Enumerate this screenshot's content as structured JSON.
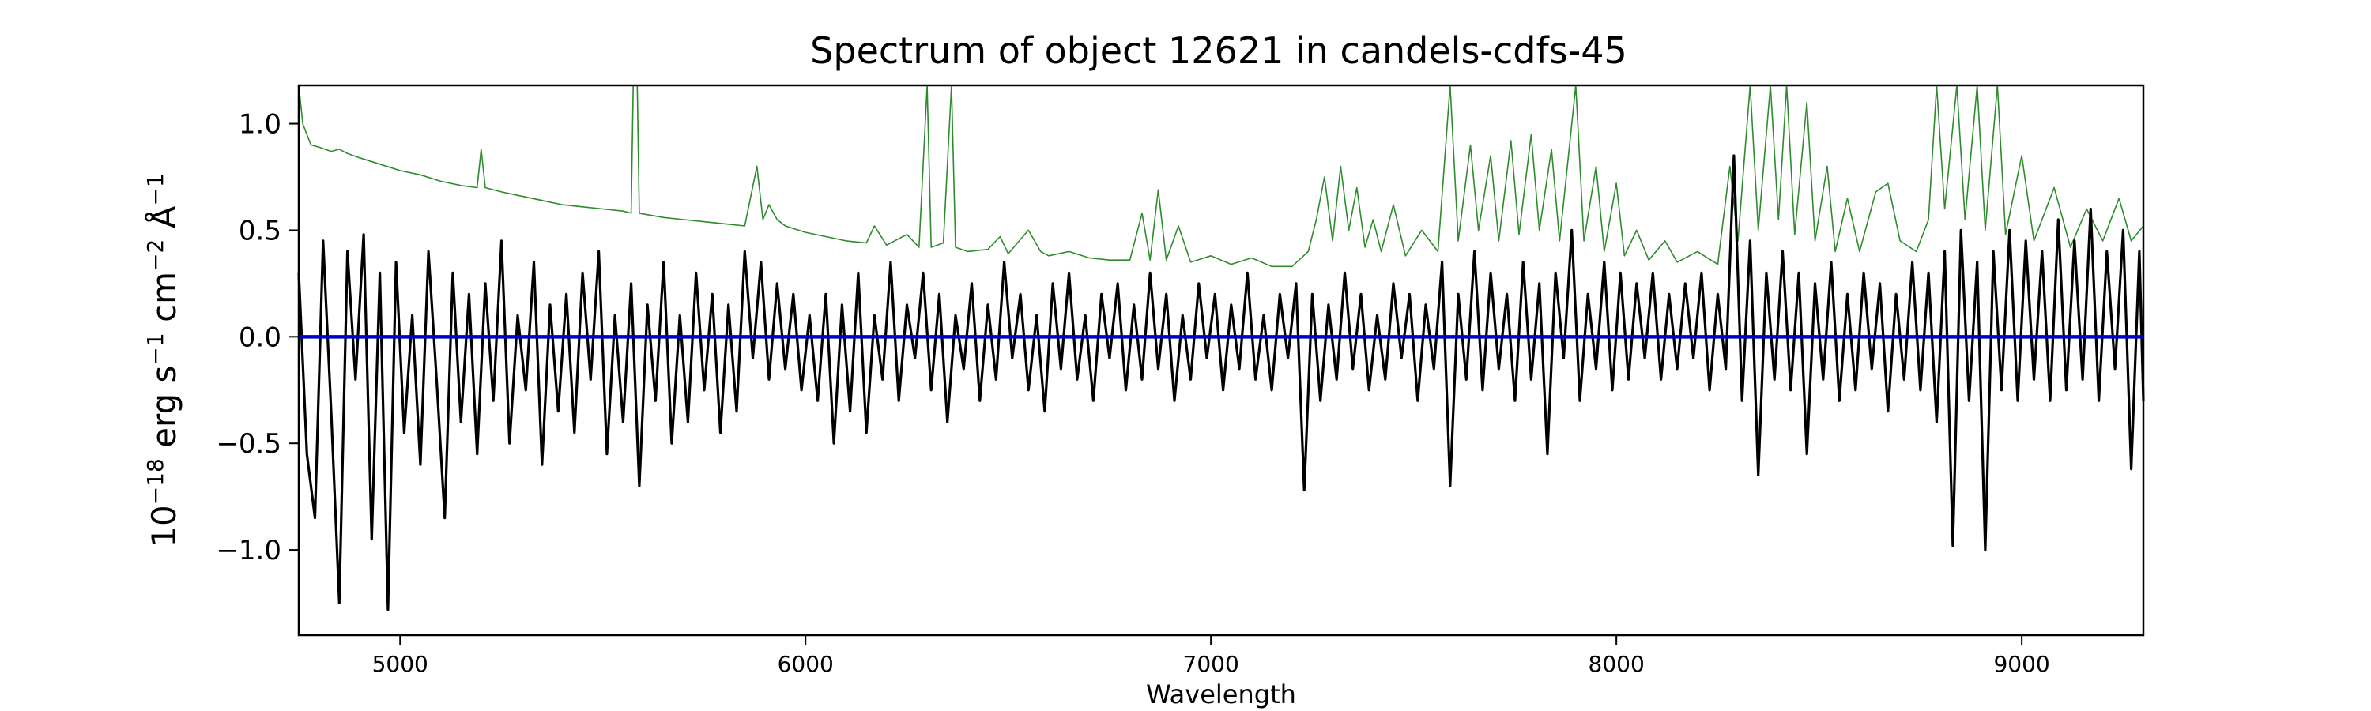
{
  "chart_data": {
    "type": "line",
    "title": "Spectrum of object 12621 in candels-cdfs-45",
    "xlabel": "Wavelength",
    "ylabel": {
      "base": "10",
      "exp1": "−18",
      "mid1": " erg s",
      "exp2": "−1",
      "mid2": " cm",
      "exp3": "−2",
      "mid3": " Å",
      "exp4": "−1"
    },
    "xlim": [
      4750,
      9300
    ],
    "ylim": [
      -1.4,
      1.18
    ],
    "x_ticks": [
      5000,
      6000,
      7000,
      8000,
      9000
    ],
    "x_tick_labels": [
      "5000",
      "6000",
      "7000",
      "8000",
      "9000"
    ],
    "y_ticks": [
      -1.0,
      -0.5,
      0.0,
      0.5,
      1.0
    ],
    "y_tick_labels": [
      "−1.0",
      "−0.5",
      "0.0",
      "0.5",
      "1.0"
    ],
    "grid": false,
    "colors": {
      "flux": "#000000",
      "error": "#2e8b2e",
      "zero": "#0000cc"
    },
    "zero_line": 0.0,
    "flux_points": [
      [
        4750,
        0.3
      ],
      [
        4770,
        -0.55
      ],
      [
        4790,
        -0.85
      ],
      [
        4810,
        0.45
      ],
      [
        4830,
        -0.35
      ],
      [
        4850,
        -1.25
      ],
      [
        4870,
        0.4
      ],
      [
        4890,
        -0.2
      ],
      [
        4910,
        0.48
      ],
      [
        4930,
        -0.95
      ],
      [
        4950,
        0.3
      ],
      [
        4970,
        -1.28
      ],
      [
        4990,
        0.35
      ],
      [
        5010,
        -0.45
      ],
      [
        5030,
        0.1
      ],
      [
        5050,
        -0.6
      ],
      [
        5070,
        0.4
      ],
      [
        5090,
        -0.2
      ],
      [
        5110,
        -0.85
      ],
      [
        5130,
        0.3
      ],
      [
        5150,
        -0.4
      ],
      [
        5170,
        0.2
      ],
      [
        5190,
        -0.55
      ],
      [
        5210,
        0.25
      ],
      [
        5230,
        -0.3
      ],
      [
        5250,
        0.45
      ],
      [
        5270,
        -0.5
      ],
      [
        5290,
        0.1
      ],
      [
        5310,
        -0.25
      ],
      [
        5330,
        0.35
      ],
      [
        5350,
        -0.6
      ],
      [
        5370,
        0.15
      ],
      [
        5390,
        -0.35
      ],
      [
        5410,
        0.2
      ],
      [
        5430,
        -0.45
      ],
      [
        5450,
        0.3
      ],
      [
        5470,
        -0.2
      ],
      [
        5490,
        0.4
      ],
      [
        5510,
        -0.55
      ],
      [
        5530,
        0.1
      ],
      [
        5550,
        -0.4
      ],
      [
        5570,
        0.25
      ],
      [
        5590,
        -0.7
      ],
      [
        5610,
        0.15
      ],
      [
        5630,
        -0.3
      ],
      [
        5650,
        0.35
      ],
      [
        5670,
        -0.5
      ],
      [
        5690,
        0.1
      ],
      [
        5710,
        -0.4
      ],
      [
        5730,
        0.3
      ],
      [
        5750,
        -0.25
      ],
      [
        5770,
        0.2
      ],
      [
        5790,
        -0.45
      ],
      [
        5810,
        0.15
      ],
      [
        5830,
        -0.35
      ],
      [
        5850,
        0.4
      ],
      [
        5870,
        -0.1
      ],
      [
        5890,
        0.35
      ],
      [
        5910,
        -0.2
      ],
      [
        5930,
        0.25
      ],
      [
        5950,
        -0.15
      ],
      [
        5970,
        0.2
      ],
      [
        5990,
        -0.25
      ],
      [
        6010,
        0.1
      ],
      [
        6030,
        -0.3
      ],
      [
        6050,
        0.2
      ],
      [
        6070,
        -0.5
      ],
      [
        6090,
        0.15
      ],
      [
        6110,
        -0.35
      ],
      [
        6130,
        0.3
      ],
      [
        6150,
        -0.45
      ],
      [
        6170,
        0.1
      ],
      [
        6190,
        -0.2
      ],
      [
        6210,
        0.35
      ],
      [
        6230,
        -0.3
      ],
      [
        6250,
        0.15
      ],
      [
        6270,
        -0.1
      ],
      [
        6290,
        0.3
      ],
      [
        6310,
        -0.25
      ],
      [
        6330,
        0.2
      ],
      [
        6350,
        -0.4
      ],
      [
        6370,
        0.1
      ],
      [
        6390,
        -0.15
      ],
      [
        6410,
        0.25
      ],
      [
        6430,
        -0.3
      ],
      [
        6450,
        0.15
      ],
      [
        6470,
        -0.2
      ],
      [
        6490,
        0.35
      ],
      [
        6510,
        -0.1
      ],
      [
        6530,
        0.2
      ],
      [
        6550,
        -0.25
      ],
      [
        6570,
        0.1
      ],
      [
        6590,
        -0.35
      ],
      [
        6610,
        0.25
      ],
      [
        6630,
        -0.15
      ],
      [
        6650,
        0.3
      ],
      [
        6670,
        -0.2
      ],
      [
        6690,
        0.1
      ],
      [
        6710,
        -0.3
      ],
      [
        6730,
        0.2
      ],
      [
        6750,
        -0.1
      ],
      [
        6770,
        0.25
      ],
      [
        6790,
        -0.25
      ],
      [
        6810,
        0.15
      ],
      [
        6830,
        -0.2
      ],
      [
        6850,
        0.3
      ],
      [
        6870,
        -0.15
      ],
      [
        6890,
        0.2
      ],
      [
        6910,
        -0.3
      ],
      [
        6930,
        0.1
      ],
      [
        6950,
        -0.2
      ],
      [
        6970,
        0.25
      ],
      [
        6990,
        -0.1
      ],
      [
        7010,
        0.2
      ],
      [
        7030,
        -0.25
      ],
      [
        7050,
        0.15
      ],
      [
        7070,
        -0.15
      ],
      [
        7090,
        0.3
      ],
      [
        7110,
        -0.2
      ],
      [
        7130,
        0.1
      ],
      [
        7150,
        -0.25
      ],
      [
        7170,
        0.2
      ],
      [
        7190,
        -0.1
      ],
      [
        7210,
        0.25
      ],
      [
        7230,
        -0.72
      ],
      [
        7250,
        0.2
      ],
      [
        7270,
        -0.3
      ],
      [
        7290,
        0.15
      ],
      [
        7310,
        -0.2
      ],
      [
        7330,
        0.3
      ],
      [
        7350,
        -0.15
      ],
      [
        7370,
        0.2
      ],
      [
        7390,
        -0.25
      ],
      [
        7410,
        0.1
      ],
      [
        7430,
        -0.2
      ],
      [
        7450,
        0.25
      ],
      [
        7470,
        -0.1
      ],
      [
        7490,
        0.2
      ],
      [
        7510,
        -0.3
      ],
      [
        7530,
        0.15
      ],
      [
        7550,
        -0.15
      ],
      [
        7570,
        0.35
      ],
      [
        7590,
        -0.7
      ],
      [
        7610,
        0.2
      ],
      [
        7630,
        -0.2
      ],
      [
        7650,
        0.4
      ],
      [
        7670,
        -0.25
      ],
      [
        7690,
        0.3
      ],
      [
        7710,
        -0.15
      ],
      [
        7730,
        0.2
      ],
      [
        7750,
        -0.3
      ],
      [
        7770,
        0.35
      ],
      [
        7790,
        -0.2
      ],
      [
        7810,
        0.25
      ],
      [
        7830,
        -0.55
      ],
      [
        7850,
        0.3
      ],
      [
        7870,
        -0.1
      ],
      [
        7890,
        0.5
      ],
      [
        7910,
        -0.3
      ],
      [
        7930,
        0.2
      ],
      [
        7950,
        -0.15
      ],
      [
        7970,
        0.35
      ],
      [
        7990,
        -0.25
      ],
      [
        8010,
        0.3
      ],
      [
        8030,
        -0.2
      ],
      [
        8050,
        0.25
      ],
      [
        8070,
        -0.1
      ],
      [
        8090,
        0.3
      ],
      [
        8110,
        -0.2
      ],
      [
        8130,
        0.2
      ],
      [
        8150,
        -0.15
      ],
      [
        8170,
        0.25
      ],
      [
        8190,
        -0.1
      ],
      [
        8210,
        0.3
      ],
      [
        8230,
        -0.25
      ],
      [
        8250,
        0.2
      ],
      [
        8270,
        -0.15
      ],
      [
        8290,
        0.85
      ],
      [
        8310,
        -0.3
      ],
      [
        8330,
        0.45
      ],
      [
        8350,
        -0.65
      ],
      [
        8370,
        0.3
      ],
      [
        8390,
        -0.2
      ],
      [
        8410,
        0.4
      ],
      [
        8430,
        -0.25
      ],
      [
        8450,
        0.3
      ],
      [
        8470,
        -0.55
      ],
      [
        8490,
        0.25
      ],
      [
        8510,
        -0.2
      ],
      [
        8530,
        0.35
      ],
      [
        8550,
        -0.3
      ],
      [
        8570,
        0.2
      ],
      [
        8590,
        -0.25
      ],
      [
        8610,
        0.3
      ],
      [
        8630,
        -0.15
      ],
      [
        8650,
        0.25
      ],
      [
        8670,
        -0.35
      ],
      [
        8690,
        0.2
      ],
      [
        8710,
        -0.2
      ],
      [
        8730,
        0.35
      ],
      [
        8750,
        -0.25
      ],
      [
        8770,
        0.3
      ],
      [
        8790,
        -0.4
      ],
      [
        8810,
        0.4
      ],
      [
        8830,
        -0.98
      ],
      [
        8850,
        0.5
      ],
      [
        8870,
        -0.3
      ],
      [
        8890,
        0.35
      ],
      [
        8910,
        -1.0
      ],
      [
        8930,
        0.4
      ],
      [
        8950,
        -0.25
      ],
      [
        8970,
        0.5
      ],
      [
        8990,
        -0.3
      ],
      [
        9010,
        0.45
      ],
      [
        9030,
        -0.2
      ],
      [
        9050,
        0.4
      ],
      [
        9070,
        -0.3
      ],
      [
        9090,
        0.55
      ],
      [
        9110,
        -0.25
      ],
      [
        9130,
        0.45
      ],
      [
        9150,
        -0.2
      ],
      [
        9170,
        0.6
      ],
      [
        9190,
        -0.3
      ],
      [
        9210,
        0.4
      ],
      [
        9230,
        -0.15
      ],
      [
        9250,
        0.5
      ],
      [
        9270,
        -0.62
      ],
      [
        9290,
        0.4
      ],
      [
        9300,
        -0.3
      ]
    ],
    "error_points": [
      [
        4750,
        1.18
      ],
      [
        4760,
        1.0
      ],
      [
        4780,
        0.9
      ],
      [
        4800,
        0.89
      ],
      [
        4830,
        0.87
      ],
      [
        4850,
        0.88
      ],
      [
        4870,
        0.86
      ],
      [
        4900,
        0.84
      ],
      [
        4950,
        0.81
      ],
      [
        5000,
        0.78
      ],
      [
        5050,
        0.76
      ],
      [
        5100,
        0.73
      ],
      [
        5150,
        0.71
      ],
      [
        5190,
        0.7
      ],
      [
        5200,
        0.88
      ],
      [
        5210,
        0.7
      ],
      [
        5250,
        0.68
      ],
      [
        5300,
        0.66
      ],
      [
        5350,
        0.64
      ],
      [
        5400,
        0.62
      ],
      [
        5450,
        0.61
      ],
      [
        5500,
        0.6
      ],
      [
        5550,
        0.59
      ],
      [
        5570,
        0.58
      ],
      [
        5575,
        1.18
      ],
      [
        5585,
        1.18
      ],
      [
        5590,
        0.58
      ],
      [
        5650,
        0.56
      ],
      [
        5700,
        0.55
      ],
      [
        5750,
        0.54
      ],
      [
        5800,
        0.53
      ],
      [
        5850,
        0.52
      ],
      [
        5880,
        0.8
      ],
      [
        5895,
        0.55
      ],
      [
        5910,
        0.62
      ],
      [
        5930,
        0.55
      ],
      [
        5950,
        0.52
      ],
      [
        6000,
        0.49
      ],
      [
        6050,
        0.47
      ],
      [
        6100,
        0.45
      ],
      [
        6150,
        0.44
      ],
      [
        6170,
        0.52
      ],
      [
        6200,
        0.43
      ],
      [
        6250,
        0.48
      ],
      [
        6280,
        0.42
      ],
      [
        6300,
        1.18
      ],
      [
        6310,
        0.42
      ],
      [
        6340,
        0.44
      ],
      [
        6360,
        1.18
      ],
      [
        6370,
        0.42
      ],
      [
        6400,
        0.4
      ],
      [
        6450,
        0.41
      ],
      [
        6480,
        0.47
      ],
      [
        6500,
        0.39
      ],
      [
        6550,
        0.5
      ],
      [
        6580,
        0.4
      ],
      [
        6600,
        0.38
      ],
      [
        6650,
        0.4
      ],
      [
        6700,
        0.37
      ],
      [
        6750,
        0.36
      ],
      [
        6800,
        0.36
      ],
      [
        6830,
        0.58
      ],
      [
        6850,
        0.36
      ],
      [
        6870,
        0.69
      ],
      [
        6890,
        0.36
      ],
      [
        6920,
        0.52
      ],
      [
        6950,
        0.35
      ],
      [
        7000,
        0.38
      ],
      [
        7050,
        0.34
      ],
      [
        7100,
        0.37
      ],
      [
        7150,
        0.33
      ],
      [
        7200,
        0.33
      ],
      [
        7240,
        0.4
      ],
      [
        7260,
        0.55
      ],
      [
        7280,
        0.75
      ],
      [
        7300,
        0.45
      ],
      [
        7320,
        0.8
      ],
      [
        7340,
        0.5
      ],
      [
        7360,
        0.7
      ],
      [
        7380,
        0.42
      ],
      [
        7400,
        0.55
      ],
      [
        7420,
        0.4
      ],
      [
        7450,
        0.62
      ],
      [
        7480,
        0.38
      ],
      [
        7520,
        0.5
      ],
      [
        7560,
        0.4
      ],
      [
        7590,
        1.18
      ],
      [
        7610,
        0.45
      ],
      [
        7640,
        0.9
      ],
      [
        7660,
        0.5
      ],
      [
        7690,
        0.85
      ],
      [
        7710,
        0.45
      ],
      [
        7740,
        0.92
      ],
      [
        7760,
        0.48
      ],
      [
        7790,
        0.95
      ],
      [
        7810,
        0.5
      ],
      [
        7840,
        0.88
      ],
      [
        7860,
        0.45
      ],
      [
        7900,
        1.18
      ],
      [
        7920,
        0.45
      ],
      [
        7950,
        0.8
      ],
      [
        7970,
        0.4
      ],
      [
        8000,
        0.72
      ],
      [
        8020,
        0.38
      ],
      [
        8050,
        0.5
      ],
      [
        8080,
        0.36
      ],
      [
        8120,
        0.45
      ],
      [
        8150,
        0.35
      ],
      [
        8200,
        0.4
      ],
      [
        8250,
        0.34
      ],
      [
        8280,
        0.8
      ],
      [
        8300,
        0.45
      ],
      [
        8330,
        1.18
      ],
      [
        8350,
        0.5
      ],
      [
        8380,
        1.18
      ],
      [
        8400,
        0.55
      ],
      [
        8420,
        1.18
      ],
      [
        8440,
        0.48
      ],
      [
        8470,
        1.1
      ],
      [
        8490,
        0.45
      ],
      [
        8520,
        0.8
      ],
      [
        8540,
        0.4
      ],
      [
        8570,
        0.65
      ],
      [
        8600,
        0.4
      ],
      [
        8640,
        0.68
      ],
      [
        8670,
        0.72
      ],
      [
        8700,
        0.45
      ],
      [
        8740,
        0.4
      ],
      [
        8770,
        0.55
      ],
      [
        8790,
        1.18
      ],
      [
        8810,
        0.6
      ],
      [
        8840,
        1.18
      ],
      [
        8860,
        0.55
      ],
      [
        8890,
        1.18
      ],
      [
        8910,
        0.5
      ],
      [
        8940,
        1.18
      ],
      [
        8960,
        0.48
      ],
      [
        9000,
        0.85
      ],
      [
        9030,
        0.45
      ],
      [
        9080,
        0.7
      ],
      [
        9120,
        0.42
      ],
      [
        9160,
        0.6
      ],
      [
        9200,
        0.45
      ],
      [
        9240,
        0.65
      ],
      [
        9270,
        0.45
      ],
      [
        9300,
        0.52
      ]
    ]
  }
}
